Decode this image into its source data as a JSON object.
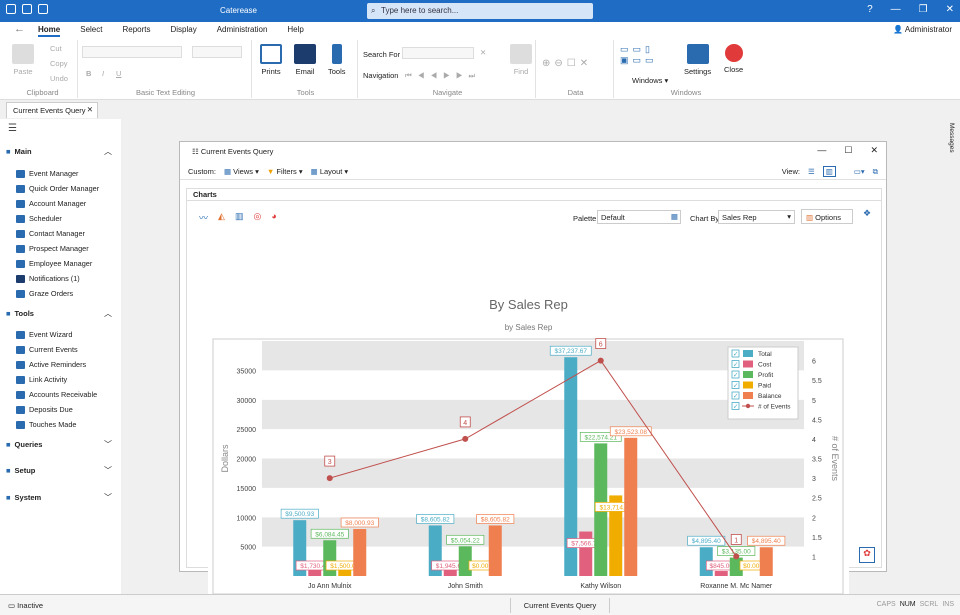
{
  "app": {
    "title": "Caterease",
    "search_placeholder": "Type here to search...",
    "user": "Administrator"
  },
  "menu": [
    "Home",
    "Select",
    "Reports",
    "Display",
    "Administration",
    "Help"
  ],
  "ribbon": {
    "clipboard": {
      "label": "Clipboard",
      "paste": "Paste",
      "cut": "Cut",
      "copy": "Copy",
      "undo": "Undo"
    },
    "text": {
      "label": "Basic Text Editing"
    },
    "tools": {
      "label": "Tools",
      "prints": "Prints",
      "email": "Email",
      "tools": "Tools"
    },
    "navigate": {
      "label": "Navigate",
      "search_for": "Search For",
      "navigation": "Navigation",
      "find": "Find"
    },
    "data": {
      "label": "Data"
    },
    "windows": {
      "label": "Windows",
      "windows": "Windows",
      "settings": "Settings",
      "close": "Close"
    }
  },
  "doc_tab": "Current Events Query",
  "sidebar": {
    "main": {
      "label": "Main",
      "items": [
        "Event Manager",
        "Quick Order Manager",
        "Account Manager",
        "Scheduler",
        "Contact Manager",
        "Prospect Manager",
        "Employee Manager",
        "Notifications (1)",
        "Graze Orders"
      ]
    },
    "tools": {
      "label": "Tools",
      "items": [
        "Event Wizard",
        "Current Events",
        "Active Reminders",
        "Link Activity",
        "Accounts Receivable",
        "Deposits Due",
        "Touches Made"
      ]
    },
    "queries": "Queries",
    "setup": "Setup",
    "system": "System"
  },
  "right_rail": "Messages",
  "query_window": {
    "title": "Current Events Query",
    "custom": "Custom:",
    "views": "Views",
    "filters": "Filters",
    "layout": "Layout",
    "view": "View:",
    "panel_title": "Charts",
    "palette_label": "Palette",
    "palette_value": "Default",
    "chartby_label": "Chart By",
    "chartby_value": "Sales Rep",
    "options": "Options"
  },
  "chart_data": {
    "type": "bar",
    "title": "By Sales Rep",
    "subtitle": "by Sales Rep",
    "ylabel": "Dollars",
    "y2label": "# of Events",
    "categories": [
      "Jo Ann Mulnix",
      "John Smith",
      "Kathy Wilson",
      "Roxanne M. Mc Namer"
    ],
    "ylim": [
      0,
      40000
    ],
    "y2lim": [
      0.5,
      6.5
    ],
    "yticks": [
      5000,
      10000,
      15000,
      20000,
      25000,
      30000,
      35000
    ],
    "y2ticks": [
      1,
      1.5,
      2,
      2.5,
      3,
      3.5,
      4,
      4.5,
      5,
      5.5,
      6
    ],
    "series": [
      {
        "name": "Total",
        "color": "#4bacc6",
        "values": [
          9500.93,
          8605.82,
          37237.67,
          4895.4
        ],
        "labels": [
          "$9,500.93",
          "$8,605.82",
          "$37,237.67",
          "$4,895.40"
        ]
      },
      {
        "name": "Cost",
        "color": "#e0607e",
        "values": [
          1730.4,
          1945.63,
          7566.79,
          845.0
        ],
        "labels": [
          "$1,730.40",
          "$1,945.63",
          "$7,566.79",
          "$845.00"
        ]
      },
      {
        "name": "Profit",
        "color": "#5cb85c",
        "values": [
          6084.45,
          5054.22,
          22574.21,
          3135.0
        ],
        "labels": [
          "$6,084.45",
          "$5,054.22",
          "$22,574.21",
          "$3,135.00"
        ]
      },
      {
        "name": "Paid",
        "color": "#f0ad00",
        "values": [
          1500.0,
          0,
          13714.59,
          0
        ],
        "labels": [
          "$1,500.00",
          "$0.00",
          "$13,714.59",
          "$0.00"
        ]
      },
      {
        "name": "Balance",
        "color": "#ef7f4e",
        "values": [
          8000.93,
          8605.82,
          23523.08,
          4895.4
        ],
        "labels": [
          "$8,000.93",
          "$8,605.82",
          "$23,523.08",
          "$4,895.40"
        ]
      }
    ],
    "line": {
      "name": "# of Events",
      "color": "#c0504d",
      "values": [
        3,
        4,
        6,
        1
      ]
    },
    "colors": {
      "line": "#c0504d"
    }
  }
}
